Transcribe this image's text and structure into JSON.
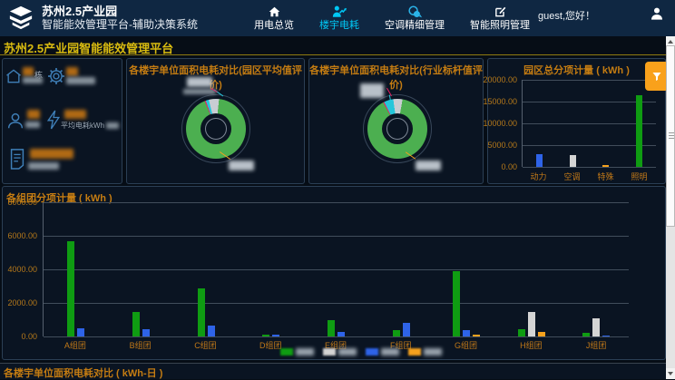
{
  "app": {
    "title_line1": "苏州2.5产业园",
    "title_line2": "智能能效管理平台-辅助决策系统",
    "greeting": "guest,您好！"
  },
  "nav": {
    "active_index": 1,
    "items": [
      {
        "label": "用电总览",
        "icon": "home-icon"
      },
      {
        "label": "楼宇电耗",
        "icon": "building-energy-icon"
      },
      {
        "label": "空调精细管理",
        "icon": "hvac-icon"
      },
      {
        "label": "智能照明管理",
        "icon": "lighting-edit-icon"
      }
    ]
  },
  "page_title": "苏州2.5产业园智能能效管理平台",
  "sidebar": {
    "stats": [
      {
        "icon": "home-outline-icon",
        "value": "",
        "value_censored": true,
        "unit": "栋",
        "sublabel_censored": true
      },
      {
        "icon": "gear-icon",
        "value": "",
        "value_censored": true,
        "sublabel_censored": true
      },
      {
        "icon": "user-outline-icon",
        "value": "",
        "value_censored": true,
        "sublabel_censored": true
      },
      {
        "icon": "lightning-icon",
        "value": "",
        "value_censored": true,
        "label": "平均电耗kWh",
        "label_suffix_censored": true
      },
      {
        "icon": "document-icon",
        "value": "",
        "value_censored": true,
        "sublabel_censored": true
      }
    ]
  },
  "colors": {
    "header_bg": "#0f2742",
    "accent_cyan": "#00c8f5",
    "title_gold": "#d9bb10",
    "panel_title_orange": "#c47c12",
    "bar_green": "#0f9c12",
    "bar_blue": "#2e63e8",
    "bar_gray": "#d4d4d4",
    "bar_orange": "#f5a11d",
    "filter_btn_orange": "#f9a11b"
  },
  "filter_button": {
    "icon": "funnel-icon"
  },
  "chart_data": [
    {
      "type": "pie",
      "title": "各楼宇单位面积电耗对比(园区平均值评价)",
      "start_deg": 6,
      "labels_censored": true,
      "slices": [
        {
          "label": "",
          "pct": 92.2,
          "color": "#4caf50"
        },
        {
          "label": "",
          "pct": 0.6,
          "color": "#e91e63"
        },
        {
          "label": "",
          "pct": 1.7,
          "color": "#26c6da"
        },
        {
          "label": "",
          "pct": 5.5,
          "color": "#c8cdd2"
        }
      ]
    },
    {
      "type": "pie",
      "title": "各楼宇单位面积电耗对比(行业标杆值评价)",
      "start_deg": 10,
      "labels_censored": true,
      "slices": [
        {
          "label": "",
          "pct": 89.4,
          "color": "#4caf50"
        },
        {
          "label": "",
          "pct": 0.6,
          "color": "#e91e63"
        },
        {
          "label": "",
          "pct": 5.0,
          "color": "#26c6da"
        },
        {
          "label": "",
          "pct": 5.0,
          "color": "#c8cdd2"
        }
      ]
    },
    {
      "type": "bar",
      "title": "园区总分项计量 ( kWh )",
      "categories": [
        "动力",
        "空调",
        "特殊",
        "照明"
      ],
      "values": [
        2850,
        2650,
        350,
        16500
      ],
      "colors": [
        "#2e63e8",
        "#d4d4d4",
        "#f5a11d",
        "#0f9c12"
      ],
      "ylim": [
        0,
        20000
      ],
      "yticks": [
        "20000.00",
        "15000.00",
        "10000.00",
        "5000.00",
        "0.00"
      ],
      "grid": true
    },
    {
      "type": "bar",
      "title": "各组团分项计量 ( kWh )",
      "categories": [
        "A组团",
        "B组团",
        "C组团",
        "D组团",
        "E组团",
        "F组团",
        "G组团",
        "H组团",
        "J组团"
      ],
      "series": [
        {
          "name": "",
          "color": "#0f9c12",
          "values": [
            5700,
            1450,
            2850,
            120,
            980,
            380,
            3900,
            450,
            210
          ]
        },
        {
          "name": "",
          "color": "#d4d4d4",
          "values": [
            0,
            0,
            0,
            0,
            0,
            0,
            0,
            1450,
            1100
          ]
        },
        {
          "name": "",
          "color": "#2e63e8",
          "values": [
            500,
            450,
            640,
            100,
            270,
            820,
            390,
            0,
            70
          ]
        },
        {
          "name": "",
          "color": "#f5a11d",
          "values": [
            0,
            0,
            0,
            0,
            0,
            0,
            90,
            270,
            0
          ]
        }
      ],
      "ylim": [
        0,
        8000
      ],
      "yticks": [
        "8000.00",
        "6000.00",
        "4000.00",
        "2000.00",
        "0.00"
      ],
      "grid": true,
      "legend_censored": true,
      "legend_position": "bottom"
    }
  ],
  "bottom_bar": {
    "title": "各楼宇单位面积电耗对比 ( kWh-日 )"
  }
}
